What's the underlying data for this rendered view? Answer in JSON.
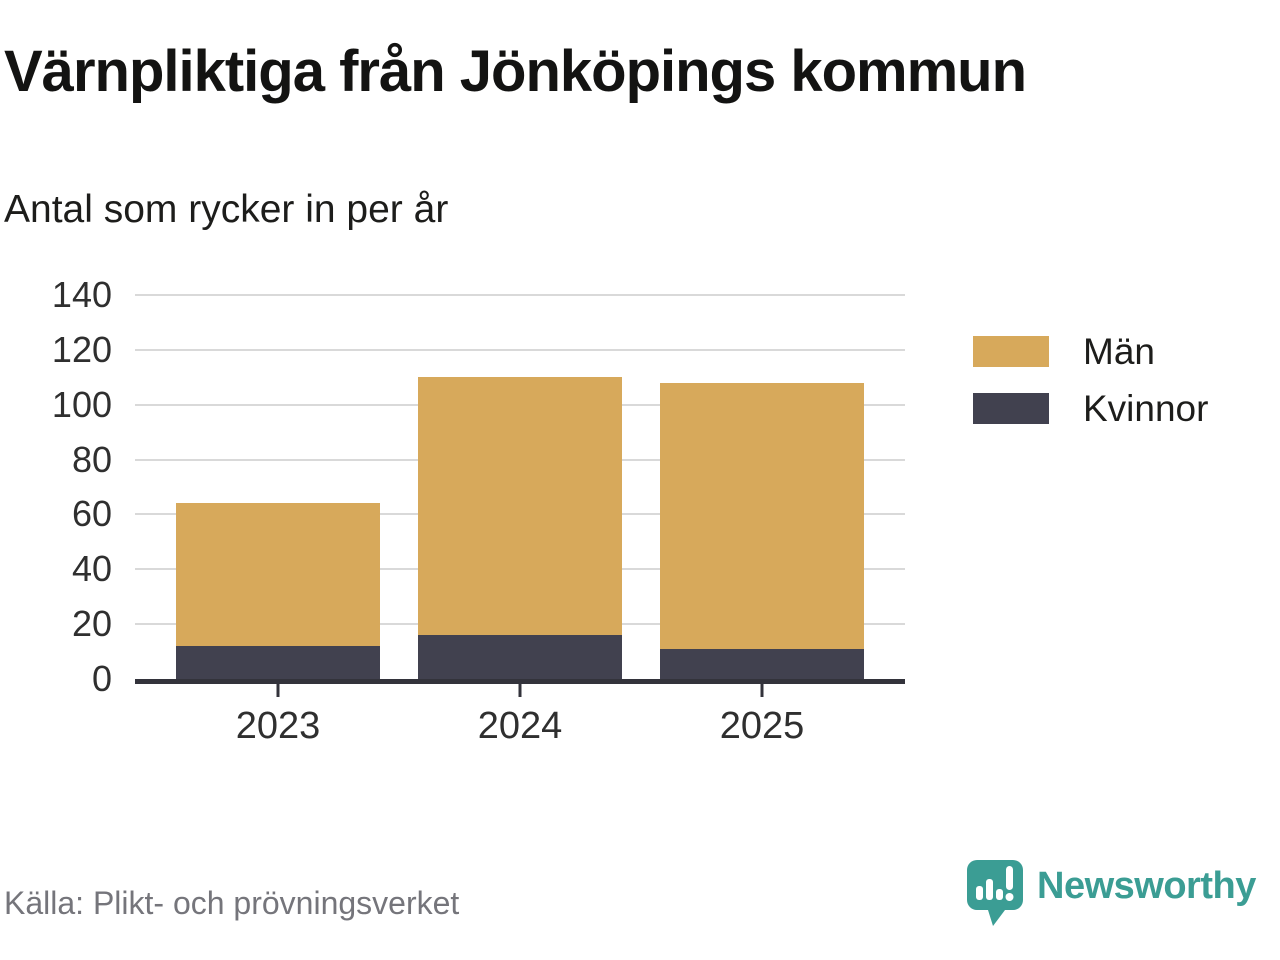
{
  "header": {
    "title": "Värnpliktiga från Jönköpings kommun",
    "subtitle": "Antal som rycker in per år"
  },
  "chart_data": {
    "type": "bar",
    "stacked": true,
    "title": "Värnpliktiga från Jönköpings kommun",
    "subtitle": "Antal som rycker in per år",
    "categories": [
      "2023",
      "2024",
      "2025"
    ],
    "series": [
      {
        "name": "Män",
        "color": "#d7a95b",
        "values": [
          52,
          94,
          97
        ]
      },
      {
        "name": "Kvinnor",
        "color": "#41414f",
        "values": [
          12,
          16,
          11
        ]
      }
    ],
    "totals": [
      64,
      110,
      108
    ],
    "xlabel": "",
    "ylabel": "",
    "ylim": [
      0,
      140
    ],
    "yticks": [
      0,
      20,
      40,
      60,
      80,
      100,
      120,
      140
    ],
    "grid": true,
    "legend_position": "right",
    "stack_order_bottom_to_top": [
      "Kvinnor",
      "Män"
    ]
  },
  "footer": {
    "source": "Källa: Plikt- och prövningsverket",
    "brand": "Newsworthy"
  },
  "colors": {
    "men": "#d7a95b",
    "women": "#41414f",
    "axis": "#33333b",
    "grid": "#d9d9d9",
    "brand_teal": "#3b9d94",
    "source_gray": "#75757b"
  }
}
